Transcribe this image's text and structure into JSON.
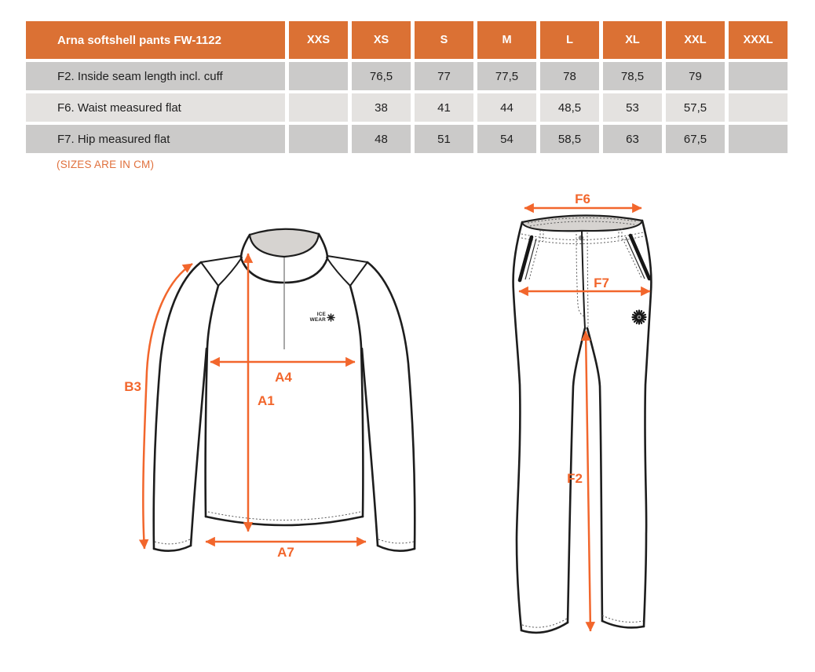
{
  "table": {
    "product": "Arna softshell pants FW-1122",
    "sizes": [
      "XXS",
      "XS",
      "S",
      "M",
      "L",
      "XL",
      "XXL",
      "XXXL"
    ],
    "rows": [
      {
        "label": "F2. Inside seam length incl. cuff",
        "values": [
          "",
          "76,5",
          "77",
          "77,5",
          "78",
          "78,5",
          "79",
          ""
        ]
      },
      {
        "label": "F6. Waist measured flat",
        "values": [
          "",
          "38",
          "41",
          "44",
          "48,5",
          "53",
          "57,5",
          ""
        ]
      },
      {
        "label": "F7. Hip measured flat",
        "values": [
          "",
          "48",
          "51",
          "54",
          "58,5",
          "63",
          "67,5",
          ""
        ]
      }
    ]
  },
  "note": "(SIZES ARE IN CM)",
  "diagrams": {
    "jacket": {
      "labels": {
        "b3": "B3",
        "a4": "A4",
        "a1": "A1",
        "a7": "A7"
      },
      "logo": {
        "line1": "ICE",
        "line2": "WEAR"
      }
    },
    "pants": {
      "labels": {
        "f6": "F6",
        "f7": "F7",
        "f2": "F2"
      }
    }
  },
  "colors": {
    "header_orange": "#DB7134",
    "arrow_orange": "#F2662C",
    "note_orange": "#E0703C",
    "row_dark": "#CBCAC9",
    "row_light": "#E4E2E0",
    "garment_gray": "#D6D3D0"
  }
}
